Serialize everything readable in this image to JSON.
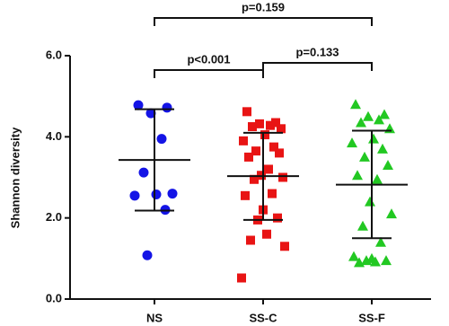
{
  "chart_data": {
    "type": "dotplot",
    "y_label": "Shannon diversity",
    "categories": [
      "NS",
      "SS-C",
      "SS-F"
    ],
    "ylim": [
      0,
      6
    ],
    "yticks": [
      {
        "value": 0,
        "label": "0.0"
      },
      {
        "value": 2,
        "label": "2.0"
      },
      {
        "value": 4,
        "label": "4.0"
      },
      {
        "value": 6,
        "label": "6.0"
      }
    ],
    "groups": [
      {
        "color": "#1414e6",
        "marker": "circle",
        "values": [
          4.78,
          4.72,
          4.58,
          3.95,
          3.12,
          2.6,
          2.58,
          2.55,
          2.2,
          1.08
        ],
        "mean": 3.43,
        "upper": 4.68,
        "lower": 2.18
      },
      {
        "color": "#e81414",
        "marker": "square",
        "values": [
          4.62,
          4.35,
          4.32,
          4.28,
          4.25,
          4.2,
          4.05,
          3.9,
          3.75,
          3.65,
          3.6,
          3.5,
          3.2,
          3.05,
          3.0,
          2.95,
          2.6,
          2.55,
          2.2,
          2.0,
          1.95,
          1.6,
          1.45,
          1.3,
          0.52
        ],
        "mean": 3.03,
        "upper": 4.1,
        "lower": 1.95
      },
      {
        "color": "#22c822",
        "marker": "triangle",
        "values": [
          4.8,
          4.55,
          4.5,
          4.42,
          4.35,
          4.2,
          3.95,
          3.85,
          3.7,
          3.5,
          3.3,
          3.05,
          2.95,
          2.4,
          2.1,
          1.8,
          1.4,
          1.05,
          1.0,
          0.95,
          0.95,
          0.92,
          0.9
        ],
        "mean": 2.82,
        "upper": 4.15,
        "lower": 1.5
      }
    ],
    "annotations": [
      {
        "text": "p<0.001",
        "from": 0,
        "to": 1
      },
      {
        "text": "p=0.133",
        "from": 1,
        "to": 2
      },
      {
        "text": "p=0.159",
        "from": 0,
        "to": 2
      }
    ]
  }
}
